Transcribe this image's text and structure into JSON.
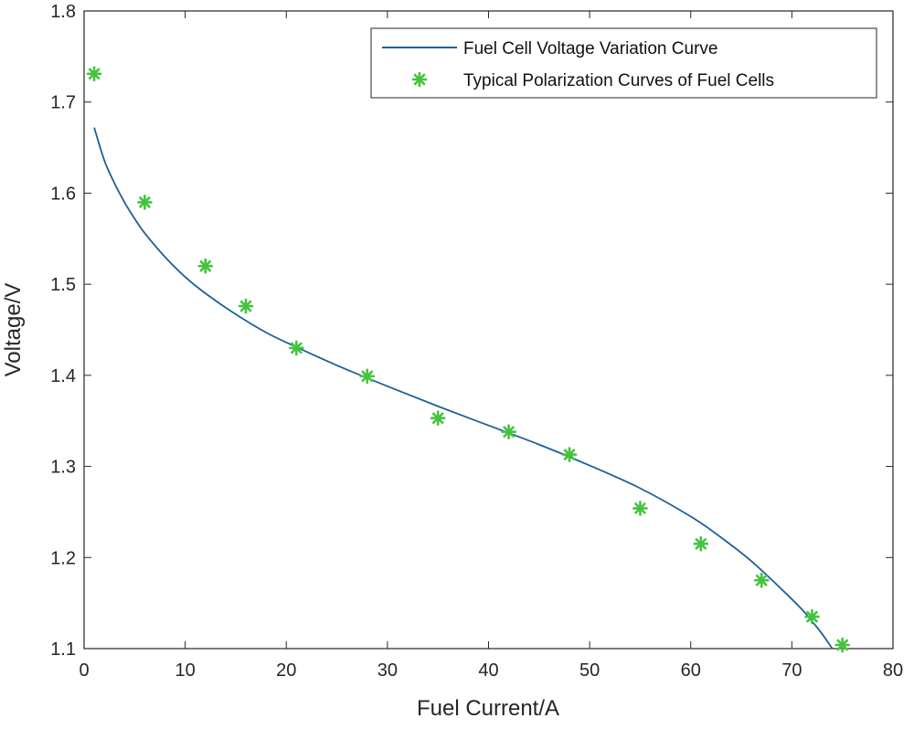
{
  "chart_data": {
    "type": "line",
    "title": "",
    "xlabel": "Fuel Current/A",
    "ylabel": "Voltage/V",
    "xlim": [
      0,
      80
    ],
    "ylim": [
      1.1,
      1.8
    ],
    "xticks": [
      0,
      10,
      20,
      30,
      40,
      50,
      60,
      70,
      80
    ],
    "xtick_labels": [
      "0",
      "10",
      "20",
      "30",
      "40",
      "50",
      "60",
      "70",
      "80"
    ],
    "yticks": [
      1.1,
      1.2,
      1.3,
      1.4,
      1.5,
      1.6,
      1.7,
      1.8
    ],
    "ytick_labels": [
      "1.1",
      "1.2",
      "1.3",
      "1.4",
      "1.5",
      "1.6",
      "1.7",
      "1.8"
    ],
    "grid": false,
    "legend_position": "top-right",
    "series": [
      {
        "name": "Fuel Cell Voltage Variation Curve",
        "style": "line",
        "color": "#1f5f9a",
        "x": [
          1,
          2,
          3,
          4,
          5,
          6,
          8,
          10,
          12,
          15,
          18,
          21,
          25,
          30,
          35,
          40,
          45,
          50,
          55,
          60,
          63,
          66,
          69,
          71,
          72,
          73,
          74
        ],
        "y": [
          1.672,
          1.636,
          1.611,
          1.59,
          1.572,
          1.556,
          1.53,
          1.508,
          1.49,
          1.467,
          1.447,
          1.431,
          1.411,
          1.388,
          1.366,
          1.345,
          1.324,
          1.301,
          1.276,
          1.245,
          1.222,
          1.196,
          1.165,
          1.143,
          1.13,
          1.116,
          1.1
        ]
      },
      {
        "name": "Typical Polarization Curves of Fuel Cells",
        "style": "marker-star",
        "color": "#44c43e",
        "x": [
          1,
          6,
          12,
          16,
          21,
          28,
          35,
          42,
          48,
          55,
          61,
          67,
          72,
          75
        ],
        "y": [
          1.731,
          1.59,
          1.52,
          1.476,
          1.43,
          1.399,
          1.353,
          1.338,
          1.313,
          1.254,
          1.215,
          1.175,
          1.135,
          1.104
        ]
      }
    ]
  }
}
